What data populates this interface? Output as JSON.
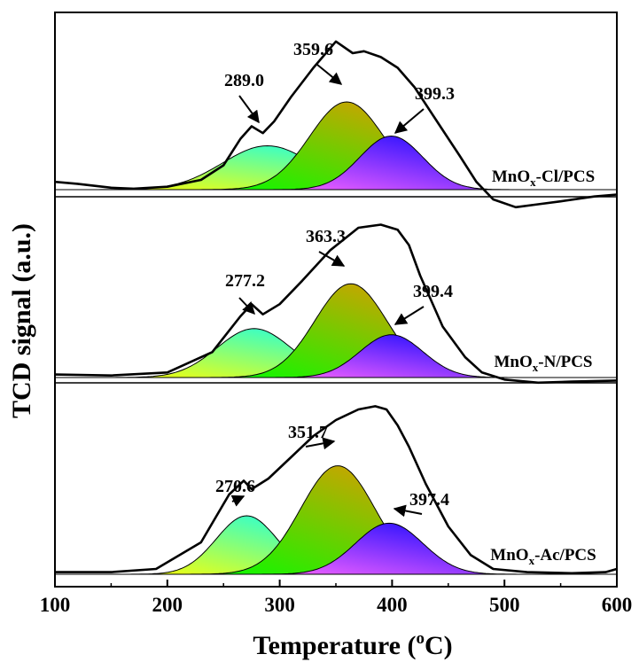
{
  "chart_data": {
    "type": "line",
    "subtype": "stacked TPR profiles with deconvoluted Gaussian peaks",
    "xlabel": {
      "main": "Temperature (",
      "superscript": "o",
      "unit": "C)"
    },
    "ylabel": "TCD signal (a.u.)",
    "xlim": [
      100,
      600
    ],
    "xticks": [
      100,
      200,
      300,
      400,
      500,
      600
    ],
    "panels": [
      {
        "sample": {
          "prefix": "MnO",
          "subscript": "x",
          "suffix": "-Cl/PCS"
        },
        "baseline": 0,
        "peaks": [
          {
            "label": "289.0",
            "center": 289.0,
            "height": 0.45,
            "sigma": 40,
            "colors": [
              "#ffff00",
              "#00ffff"
            ]
          },
          {
            "label": "359.6",
            "center": 359.6,
            "height": 0.9,
            "sigma": 33,
            "colors": [
              "#00ff00",
              "#ff8c00"
            ]
          },
          {
            "label": "399.3",
            "center": 399.3,
            "height": 0.55,
            "sigma": 28,
            "colors": [
              "#ff66ff",
              "#0000ff"
            ]
          }
        ],
        "total_signal": [
          [
            100,
            0.08
          ],
          [
            120,
            0.06
          ],
          [
            150,
            0.02
          ],
          [
            170,
            0.01
          ],
          [
            200,
            0.03
          ],
          [
            230,
            0.1
          ],
          [
            250,
            0.25
          ],
          [
            265,
            0.52
          ],
          [
            275,
            0.65
          ],
          [
            285,
            0.58
          ],
          [
            295,
            0.7
          ],
          [
            310,
            0.95
          ],
          [
            330,
            1.25
          ],
          [
            350,
            1.52
          ],
          [
            365,
            1.4
          ],
          [
            375,
            1.42
          ],
          [
            390,
            1.36
          ],
          [
            405,
            1.25
          ],
          [
            420,
            1.05
          ],
          [
            440,
            0.7
          ],
          [
            460,
            0.35
          ],
          [
            475,
            0.08
          ],
          [
            490,
            -0.1
          ],
          [
            510,
            -0.18
          ],
          [
            530,
            -0.15
          ],
          [
            550,
            -0.12
          ],
          [
            580,
            -0.07
          ],
          [
            600,
            -0.05
          ]
        ]
      },
      {
        "sample": {
          "prefix": "MnO",
          "subscript": "x",
          "suffix": "-N/PCS"
        },
        "baseline": 0,
        "peaks": [
          {
            "label": "277.2",
            "center": 277.2,
            "height": 0.48,
            "sigma": 33,
            "colors": [
              "#ffff00",
              "#00ffff"
            ]
          },
          {
            "label": "363.3",
            "center": 363.3,
            "height": 0.92,
            "sigma": 32,
            "colors": [
              "#00ff00",
              "#ff8c00"
            ]
          },
          {
            "label": "399.4",
            "center": 399.4,
            "height": 0.42,
            "sigma": 28,
            "colors": [
              "#ff66ff",
              "#0000ff"
            ]
          }
        ],
        "total_signal": [
          [
            100,
            0.03
          ],
          [
            150,
            0.02
          ],
          [
            200,
            0.05
          ],
          [
            240,
            0.25
          ],
          [
            265,
            0.6
          ],
          [
            275,
            0.72
          ],
          [
            285,
            0.62
          ],
          [
            300,
            0.72
          ],
          [
            320,
            0.95
          ],
          [
            345,
            1.25
          ],
          [
            370,
            1.47
          ],
          [
            390,
            1.5
          ],
          [
            405,
            1.45
          ],
          [
            415,
            1.3
          ],
          [
            425,
            1.0
          ],
          [
            445,
            0.5
          ],
          [
            465,
            0.2
          ],
          [
            480,
            0.05
          ],
          [
            500,
            -0.02
          ],
          [
            530,
            -0.05
          ],
          [
            560,
            -0.04
          ],
          [
            600,
            -0.03
          ]
        ]
      },
      {
        "sample": {
          "prefix": "MnO",
          "subscript": "x",
          "suffix": "-Ac/PCS"
        },
        "baseline": 0,
        "peaks": [
          {
            "label": "270.6",
            "center": 270.6,
            "height": 0.55,
            "sigma": 27,
            "colors": [
              "#ffff00",
              "#00ffff"
            ]
          },
          {
            "label": "351.7",
            "center": 351.7,
            "height": 1.02,
            "sigma": 33,
            "colors": [
              "#00ff00",
              "#ff8c00"
            ]
          },
          {
            "label": "397.4",
            "center": 397.4,
            "height": 0.48,
            "sigma": 30,
            "colors": [
              "#ff66ff",
              "#0000ff"
            ]
          }
        ],
        "total_signal": [
          [
            100,
            0.02
          ],
          [
            150,
            0.02
          ],
          [
            190,
            0.05
          ],
          [
            230,
            0.3
          ],
          [
            255,
            0.75
          ],
          [
            268,
            0.88
          ],
          [
            275,
            0.8
          ],
          [
            290,
            0.9
          ],
          [
            310,
            1.1
          ],
          [
            330,
            1.3
          ],
          [
            350,
            1.45
          ],
          [
            370,
            1.55
          ],
          [
            385,
            1.58
          ],
          [
            395,
            1.55
          ],
          [
            405,
            1.4
          ],
          [
            415,
            1.2
          ],
          [
            430,
            0.85
          ],
          [
            450,
            0.45
          ],
          [
            470,
            0.18
          ],
          [
            490,
            0.05
          ],
          [
            520,
            0.02
          ],
          [
            560,
            0.01
          ],
          [
            590,
            0.02
          ],
          [
            600,
            0.05
          ]
        ]
      }
    ]
  }
}
